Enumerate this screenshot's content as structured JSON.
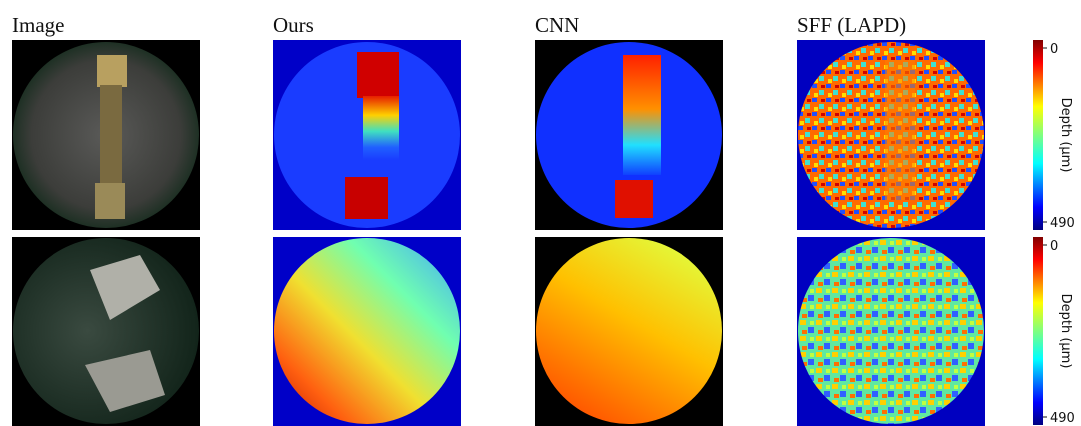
{
  "columns": [
    "Image",
    "Ours",
    "CNN",
    "SFF (LAPD)"
  ],
  "colorbar": {
    "label": "Depth (µm)",
    "ticks": [
      0,
      490
    ]
  }
}
